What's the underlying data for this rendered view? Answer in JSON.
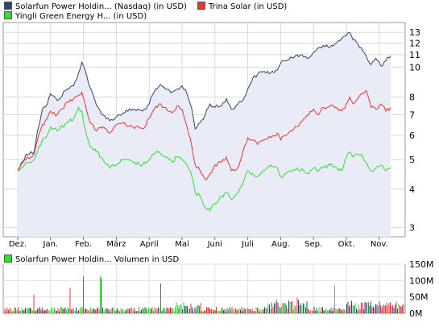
{
  "chart_data": [
    {
      "type": "line",
      "yscale": "log",
      "ylim": [
        2.8,
        14
      ],
      "yticks": [
        3,
        4,
        5,
        6,
        7,
        8,
        10,
        11,
        12,
        13
      ],
      "xticks": [
        "Dez.",
        "Jan.",
        "Feb.",
        "März",
        "April",
        "Mai",
        "Juni",
        "Juli",
        "Aug.",
        "Sep.",
        "Okt.",
        "Nov."
      ],
      "grid": true,
      "legend": "top",
      "series": [
        {
          "name": "Solarfun Power Holdin... (Nasdaq) (in USD)",
          "color": "#334466",
          "fill": "#e9ecf6",
          "points": [
            [
              0.0,
              4.6
            ],
            [
              0.25,
              5.2
            ],
            [
              0.5,
              5.3
            ],
            [
              0.6,
              6.2
            ],
            [
              0.75,
              7.3
            ],
            [
              0.9,
              7.6
            ],
            [
              1.0,
              8.2
            ],
            [
              1.2,
              7.8
            ],
            [
              1.5,
              8.5
            ],
            [
              1.7,
              8.7
            ],
            [
              1.85,
              9.6
            ],
            [
              1.95,
              10.4
            ],
            [
              2.05,
              9.8
            ],
            [
              2.2,
              8.6
            ],
            [
              2.4,
              7.5
            ],
            [
              2.6,
              7.0
            ],
            [
              2.8,
              6.7
            ],
            [
              3.0,
              6.9
            ],
            [
              3.2,
              7.1
            ],
            [
              3.5,
              7.3
            ],
            [
              3.8,
              7.2
            ],
            [
              4.0,
              7.6
            ],
            [
              4.15,
              8.3
            ],
            [
              4.3,
              8.7
            ],
            [
              4.5,
              8.5
            ],
            [
              4.7,
              8.3
            ],
            [
              4.85,
              8.5
            ],
            [
              5.0,
              8.7
            ],
            [
              5.15,
              8.2
            ],
            [
              5.3,
              7.3
            ],
            [
              5.4,
              6.3
            ],
            [
              5.55,
              6.6
            ],
            [
              5.7,
              7.0
            ],
            [
              5.85,
              7.6
            ],
            [
              6.0,
              7.4
            ],
            [
              6.2,
              7.5
            ],
            [
              6.35,
              7.9
            ],
            [
              6.5,
              7.3
            ],
            [
              6.7,
              7.6
            ],
            [
              6.85,
              7.8
            ],
            [
              7.0,
              8.5
            ],
            [
              7.15,
              9.2
            ],
            [
              7.3,
              9.5
            ],
            [
              7.5,
              9.7
            ],
            [
              7.7,
              9.6
            ],
            [
              7.9,
              9.8
            ],
            [
              8.0,
              10.3
            ],
            [
              8.15,
              10.5
            ],
            [
              8.3,
              10.8
            ],
            [
              8.5,
              11.0
            ],
            [
              8.7,
              10.8
            ],
            [
              8.85,
              10.7
            ],
            [
              9.0,
              11.2
            ],
            [
              9.15,
              11.6
            ],
            [
              9.3,
              11.8
            ],
            [
              9.5,
              11.6
            ],
            [
              9.7,
              12.0
            ],
            [
              9.85,
              12.4
            ],
            [
              10.0,
              12.7
            ],
            [
              10.1,
              13.0
            ],
            [
              10.2,
              12.3
            ],
            [
              10.3,
              12.1
            ],
            [
              10.45,
              11.6
            ],
            [
              10.6,
              10.9
            ],
            [
              10.75,
              10.2
            ],
            [
              10.9,
              10.7
            ],
            [
              11.05,
              10.1
            ],
            [
              11.2,
              10.5
            ],
            [
              11.35,
              10.9
            ]
          ]
        },
        {
          "name": "Trina Solar (in USD)",
          "color": "#ee3333",
          "points": [
            [
              0.0,
              4.6
            ],
            [
              0.25,
              5.0
            ],
            [
              0.5,
              5.2
            ],
            [
              0.6,
              5.8
            ],
            [
              0.75,
              6.5
            ],
            [
              0.9,
              6.8
            ],
            [
              1.0,
              7.2
            ],
            [
              1.2,
              7.0
            ],
            [
              1.5,
              7.7
            ],
            [
              1.7,
              7.9
            ],
            [
              1.85,
              8.1
            ],
            [
              1.95,
              8.3
            ],
            [
              2.05,
              7.6
            ],
            [
              2.2,
              6.6
            ],
            [
              2.4,
              6.2
            ],
            [
              2.6,
              6.4
            ],
            [
              2.8,
              6.1
            ],
            [
              3.0,
              6.5
            ],
            [
              3.2,
              6.6
            ],
            [
              3.5,
              6.4
            ],
            [
              3.8,
              6.3
            ],
            [
              4.0,
              6.8
            ],
            [
              4.15,
              7.3
            ],
            [
              4.3,
              7.6
            ],
            [
              4.5,
              7.4
            ],
            [
              4.7,
              7.1
            ],
            [
              4.85,
              7.5
            ],
            [
              5.0,
              7.3
            ],
            [
              5.15,
              6.4
            ],
            [
              5.3,
              5.5
            ],
            [
              5.4,
              4.8
            ],
            [
              5.55,
              4.6
            ],
            [
              5.7,
              4.3
            ],
            [
              5.85,
              4.5
            ],
            [
              6.0,
              4.8
            ],
            [
              6.2,
              4.9
            ],
            [
              6.35,
              5.1
            ],
            [
              6.5,
              4.6
            ],
            [
              6.7,
              4.7
            ],
            [
              6.85,
              5.3
            ],
            [
              7.0,
              5.9
            ],
            [
              7.15,
              5.8
            ],
            [
              7.3,
              5.6
            ],
            [
              7.5,
              5.8
            ],
            [
              7.7,
              5.9
            ],
            [
              7.9,
              6.1
            ],
            [
              8.0,
              5.8
            ],
            [
              8.15,
              6.0
            ],
            [
              8.3,
              6.2
            ],
            [
              8.5,
              6.4
            ],
            [
              8.7,
              6.8
            ],
            [
              8.85,
              7.0
            ],
            [
              9.0,
              7.3
            ],
            [
              9.15,
              7.0
            ],
            [
              9.3,
              7.4
            ],
            [
              9.5,
              7.5
            ],
            [
              9.7,
              7.4
            ],
            [
              9.85,
              7.2
            ],
            [
              10.0,
              7.6
            ],
            [
              10.1,
              8.0
            ],
            [
              10.2,
              7.6
            ],
            [
              10.3,
              7.8
            ],
            [
              10.45,
              8.2
            ],
            [
              10.6,
              8.4
            ],
            [
              10.75,
              7.4
            ],
            [
              10.9,
              7.3
            ],
            [
              11.05,
              7.6
            ],
            [
              11.2,
              7.2
            ],
            [
              11.35,
              7.4
            ]
          ]
        },
        {
          "name": "Yingli Green Energy H... (in USD)",
          "color": "#33dd33",
          "points": [
            [
              0.0,
              4.6
            ],
            [
              0.25,
              4.9
            ],
            [
              0.5,
              5.0
            ],
            [
              0.6,
              5.3
            ],
            [
              0.75,
              5.8
            ],
            [
              0.9,
              6.0
            ],
            [
              1.0,
              6.4
            ],
            [
              1.2,
              6.2
            ],
            [
              1.5,
              6.6
            ],
            [
              1.7,
              6.8
            ],
            [
              1.85,
              7.4
            ],
            [
              1.95,
              7.2
            ],
            [
              2.05,
              6.3
            ],
            [
              2.2,
              5.5
            ],
            [
              2.4,
              5.3
            ],
            [
              2.6,
              5.0
            ],
            [
              2.8,
              4.7
            ],
            [
              3.0,
              4.8
            ],
            [
              3.2,
              5.0
            ],
            [
              3.5,
              4.9
            ],
            [
              3.8,
              4.8
            ],
            [
              4.0,
              5.0
            ],
            [
              4.15,
              5.2
            ],
            [
              4.3,
              5.3
            ],
            [
              4.5,
              5.1
            ],
            [
              4.7,
              4.9
            ],
            [
              4.85,
              5.1
            ],
            [
              5.0,
              5.0
            ],
            [
              5.15,
              4.8
            ],
            [
              5.3,
              4.4
            ],
            [
              5.4,
              3.9
            ],
            [
              5.55,
              3.8
            ],
            [
              5.7,
              3.5
            ],
            [
              5.85,
              3.4
            ],
            [
              6.0,
              3.6
            ],
            [
              6.2,
              3.8
            ],
            [
              6.35,
              3.9
            ],
            [
              6.5,
              3.7
            ],
            [
              6.7,
              3.9
            ],
            [
              6.85,
              4.2
            ],
            [
              7.0,
              4.6
            ],
            [
              7.15,
              4.5
            ],
            [
              7.3,
              4.4
            ],
            [
              7.5,
              4.6
            ],
            [
              7.7,
              4.8
            ],
            [
              7.9,
              4.7
            ],
            [
              8.0,
              4.4
            ],
            [
              8.15,
              4.5
            ],
            [
              8.3,
              4.6
            ],
            [
              8.5,
              4.7
            ],
            [
              8.7,
              4.6
            ],
            [
              8.85,
              4.5
            ],
            [
              9.0,
              4.7
            ],
            [
              9.15,
              4.6
            ],
            [
              9.3,
              4.7
            ],
            [
              9.5,
              4.8
            ],
            [
              9.7,
              4.7
            ],
            [
              9.85,
              4.6
            ],
            [
              10.0,
              5.1
            ],
            [
              10.1,
              5.3
            ],
            [
              10.2,
              5.1
            ],
            [
              10.3,
              5.2
            ],
            [
              10.45,
              5.2
            ],
            [
              10.6,
              4.9
            ],
            [
              10.75,
              4.6
            ],
            [
              10.9,
              4.7
            ],
            [
              11.05,
              4.8
            ],
            [
              11.2,
              4.6
            ],
            [
              11.35,
              4.7
            ]
          ]
        }
      ]
    },
    {
      "type": "bar",
      "ylim": [
        0,
        150
      ],
      "yticks": [
        "150M",
        "100M",
        "50M",
        "0M"
      ],
      "ytick_values": [
        150,
        100,
        50,
        0
      ],
      "legend": "top",
      "series": [
        {
          "name": "Solarfun Power Holdin... Volumen in USD",
          "color": "#33dd33"
        }
      ],
      "other_colors": [
        "#ee3333",
        "#334466"
      ]
    }
  ]
}
